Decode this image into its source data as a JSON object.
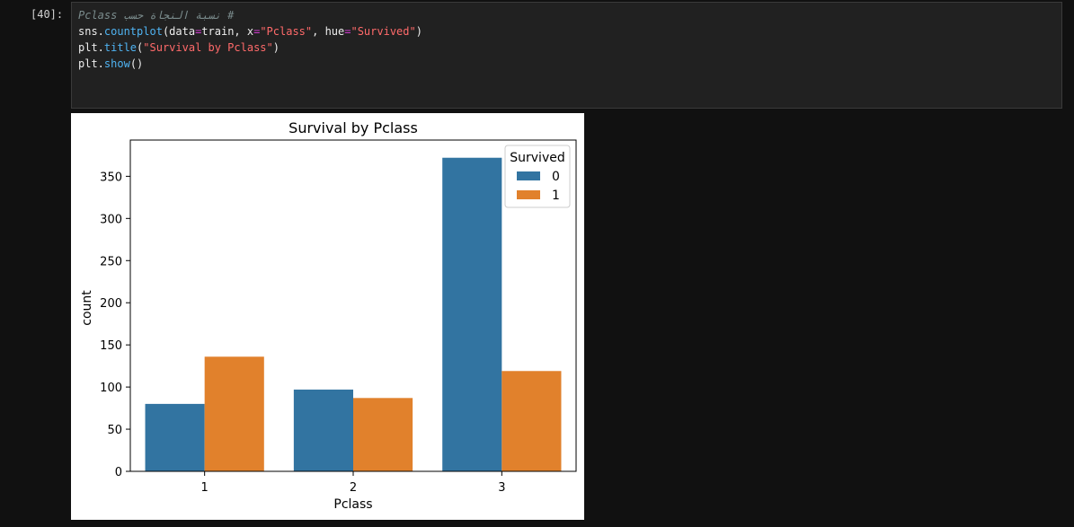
{
  "cell": {
    "prompt": "[40]:",
    "code": [
      {
        "tokens": [
          {
            "t": "# نسبة النجاة حسب Pclass",
            "c": "comment"
          }
        ]
      },
      {
        "tokens": [
          {
            "t": "sns.",
            "c": ""
          },
          {
            "t": "countplot",
            "c": "fn"
          },
          {
            "t": "(data",
            "c": ""
          },
          {
            "t": "=",
            "c": "op"
          },
          {
            "t": "train, x",
            "c": ""
          },
          {
            "t": "=",
            "c": "op"
          },
          {
            "t": "\"Pclass\"",
            "c": "str"
          },
          {
            "t": ", hue",
            "c": ""
          },
          {
            "t": "=",
            "c": "op"
          },
          {
            "t": "\"Survived\"",
            "c": "str"
          },
          {
            "t": ")",
            "c": ""
          }
        ]
      },
      {
        "tokens": [
          {
            "t": "plt.",
            "c": ""
          },
          {
            "t": "title",
            "c": "fn"
          },
          {
            "t": "(",
            "c": ""
          },
          {
            "t": "\"Survival by Pclass\"",
            "c": "str"
          },
          {
            "t": ")",
            "c": ""
          }
        ]
      },
      {
        "tokens": [
          {
            "t": "plt.",
            "c": ""
          },
          {
            "t": "show",
            "c": "fn"
          },
          {
            "t": "()",
            "c": ""
          }
        ]
      }
    ]
  },
  "colors": {
    "survived_0": "#3274a1",
    "survived_1": "#e1812c"
  },
  "chart_data": {
    "type": "bar",
    "title": "Survival by Pclass",
    "xlabel": "Pclass",
    "ylabel": "count",
    "categories": [
      "1",
      "2",
      "3"
    ],
    "series": [
      {
        "name": "0",
        "values": [
          80,
          97,
          372
        ]
      },
      {
        "name": "1",
        "values": [
          136,
          87,
          119
        ]
      }
    ],
    "ylim": [
      0,
      393
    ],
    "yticks": [
      0,
      50,
      100,
      150,
      200,
      250,
      300,
      350
    ],
    "legend": {
      "title": "Survived",
      "position": "top-right"
    },
    "grid": false
  }
}
